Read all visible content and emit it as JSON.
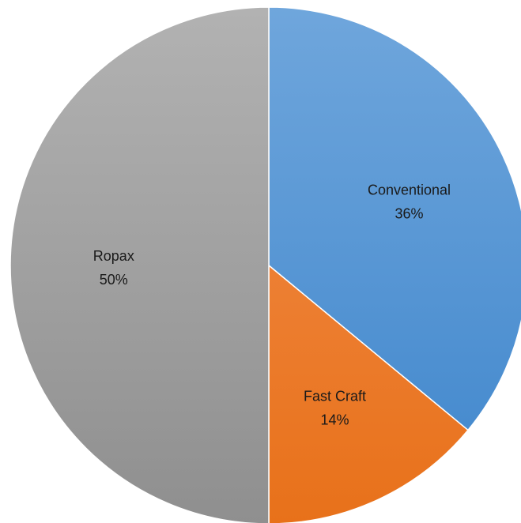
{
  "chart_data": {
    "type": "pie",
    "title": "",
    "slices": [
      {
        "label": "Conventional",
        "value": 36,
        "percent_label": "36%",
        "color_light": "#6fa6dc",
        "color_dark": "#3f86cc"
      },
      {
        "label": "Fast Craft",
        "value": 14,
        "percent_label": "14%",
        "color_light": "#f28e4d",
        "color_dark": "#e8711a"
      },
      {
        "label": "Ropax",
        "value": 50,
        "percent_label": "50%",
        "color_light": "#b2b2b2",
        "color_dark": "#8f8f8f"
      }
    ],
    "start": "12 o'clock",
    "direction": "clockwise",
    "legend": "none",
    "data_labels": "inside"
  }
}
